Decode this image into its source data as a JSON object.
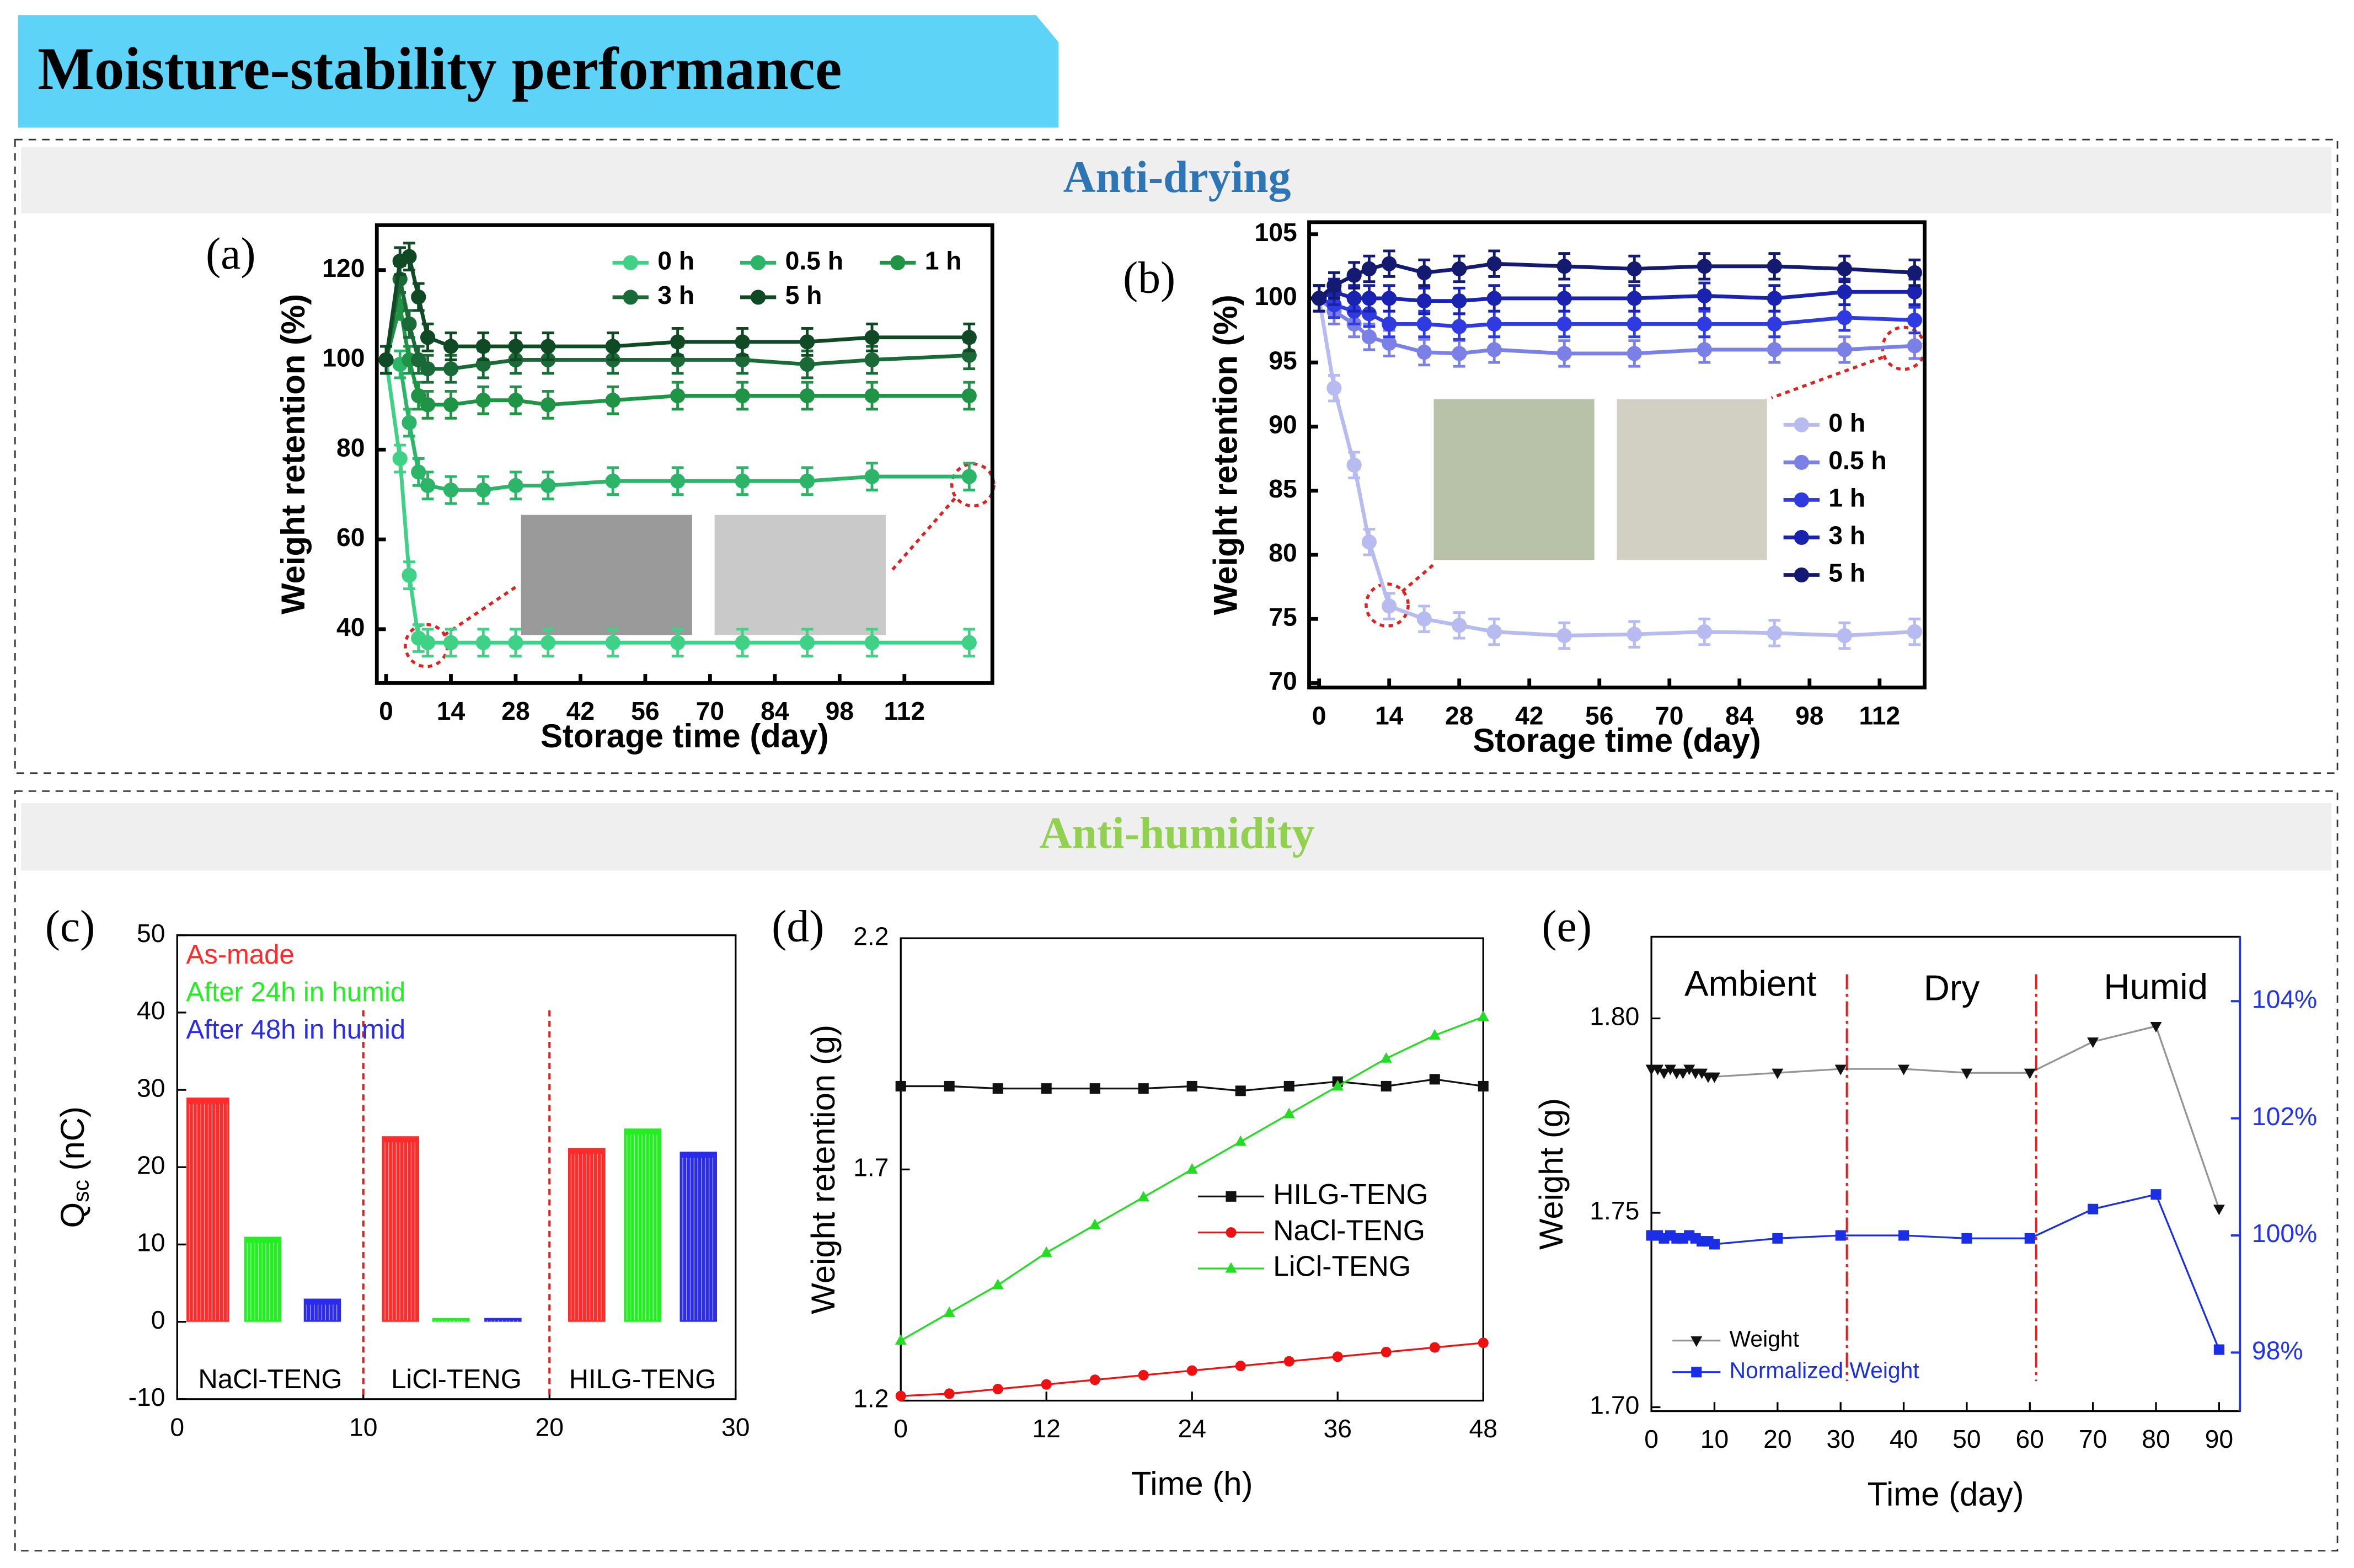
{
  "header": {
    "title": "Moisture-stability performance"
  },
  "sections": [
    "Anti-drying",
    "Anti-humidity"
  ],
  "chart_data": [
    {
      "type": "line",
      "panel": "(a)",
      "xlabel": "Storage time (day)",
      "ylabel": "Weight retention (%)",
      "xlim": [
        -2,
        131
      ],
      "ylim": [
        28,
        130
      ],
      "xticks": [
        0,
        14,
        28,
        42,
        56,
        70,
        84,
        98,
        112
      ],
      "yticks": [
        40,
        60,
        80,
        100,
        120
      ],
      "x": [
        0,
        3,
        5,
        7,
        9,
        14,
        21,
        28,
        35,
        49,
        63,
        77,
        91,
        105,
        126
      ],
      "series": [
        {
          "name": "0 h",
          "color": "#3fd186",
          "marker": "circle",
          "error": 3,
          "values": [
            100,
            78,
            52,
            38,
            37,
            37,
            37,
            37,
            37,
            37,
            37,
            37,
            37,
            37,
            37
          ]
        },
        {
          "name": "0.5 h",
          "color": "#2cb569",
          "marker": "circle",
          "error": 3,
          "values": [
            100,
            99,
            86,
            75,
            72,
            71,
            71,
            72,
            72,
            73,
            73,
            73,
            73,
            74,
            74
          ]
        },
        {
          "name": "1 h",
          "color": "#1f9445",
          "marker": "circle",
          "error": 3,
          "values": [
            100,
            112,
            100,
            92,
            90,
            90,
            91,
            91,
            90,
            91,
            92,
            92,
            92,
            92,
            92
          ]
        },
        {
          "name": "3 h",
          "color": "#1a6a37",
          "marker": "circle",
          "error": 3,
          "values": [
            100,
            118,
            108,
            100,
            98,
            98,
            99,
            100,
            100,
            100,
            100,
            100,
            99,
            100,
            101
          ]
        },
        {
          "name": "5 h",
          "color": "#0f4a25",
          "marker": "circle",
          "error": 3,
          "values": [
            100,
            122,
            123,
            114,
            105,
            103,
            103,
            103,
            103,
            103,
            104,
            104,
            104,
            105,
            105
          ]
        }
      ]
    },
    {
      "type": "line",
      "panel": "(b)",
      "xlabel": "Storage time (day)",
      "ylabel": "Weight retention (%)",
      "xlim": [
        -2,
        121
      ],
      "ylim": [
        69.65,
        105.94
      ],
      "xticks": [
        0,
        14,
        28,
        42,
        56,
        70,
        84,
        98,
        112
      ],
      "yticks": [
        70,
        75,
        80,
        85,
        90,
        95,
        100,
        105
      ],
      "x": [
        0,
        3,
        7,
        10,
        14,
        21,
        28,
        35,
        49,
        63,
        77,
        91,
        105,
        119
      ],
      "series": [
        {
          "name": "0 h",
          "color": "#b7bbf0",
          "marker": "circle",
          "error": 1,
          "values": [
            100,
            93,
            87,
            81,
            76,
            75,
            74.5,
            74,
            73.7,
            73.8,
            74,
            73.9,
            73.7,
            74
          ]
        },
        {
          "name": "0.5 h",
          "color": "#7a80e6",
          "marker": "circle",
          "error": 1,
          "values": [
            100,
            99,
            98,
            97,
            96.5,
            95.8,
            95.7,
            96,
            95.7,
            95.7,
            96,
            96,
            96,
            96.3
          ]
        },
        {
          "name": "1 h",
          "color": "#2f3be0",
          "marker": "circle",
          "error": 1,
          "values": [
            100,
            99.5,
            99,
            98.8,
            98,
            98,
            97.8,
            98,
            98,
            98,
            98,
            98,
            98.5,
            98.3
          ]
        },
        {
          "name": "3 h",
          "color": "#1a22b0",
          "marker": "circle",
          "error": 1,
          "values": [
            100,
            100.5,
            100,
            100,
            100,
            99.8,
            99.8,
            100,
            100,
            100,
            100.2,
            100,
            100.5,
            100.5
          ]
        },
        {
          "name": "5 h",
          "color": "#141a70",
          "marker": "circle",
          "error": 1,
          "values": [
            100,
            101,
            101.8,
            102.3,
            102.7,
            102,
            102.3,
            102.7,
            102.5,
            102.3,
            102.5,
            102.5,
            102.3,
            102
          ]
        }
      ]
    },
    {
      "type": "bar",
      "panel": "(c)",
      "ylabel": [
        "Q",
        "sc",
        " (nC)"
      ],
      "xlim": [
        0,
        30
      ],
      "ylim": [
        -10,
        50
      ],
      "xticks": [
        0,
        10,
        20,
        30
      ],
      "yticks": [
        -10,
        0,
        10,
        20,
        30,
        40,
        50
      ],
      "categories": [
        "NaCl-TENG",
        "LiCl-TENG",
        "HILG-TENG"
      ],
      "dividers": [
        10,
        20
      ],
      "series": [
        {
          "name": "As-made",
          "color": "#ff2a2a",
          "x": [
            [
              0.5,
              2.8
            ],
            [
              11,
              13
            ],
            [
              21,
              23
            ]
          ],
          "values": [
            29,
            24,
            22.5
          ]
        },
        {
          "name": "After 24h in humid",
          "color": "#22ee22",
          "x": [
            [
              3.6,
              5.6
            ],
            [
              13.7,
              15.7
            ],
            [
              24,
              26
            ]
          ],
          "values": [
            11,
            0.5,
            25
          ]
        },
        {
          "name": "After 48h in humid",
          "color": "#2b2bee",
          "x": [
            [
              6.8,
              8.8
            ],
            [
              16.5,
              18.5
            ],
            [
              27,
              29
            ]
          ],
          "values": [
            3,
            0.5,
            22
          ]
        }
      ]
    },
    {
      "type": "line",
      "panel": "(d)",
      "xlabel": "Time (h)",
      "ylabel": "Weight retention (g)",
      "xlim": [
        0,
        48
      ],
      "ylim": [
        1.2,
        2.2
      ],
      "xticks": [
        0,
        12,
        24,
        36,
        48
      ],
      "yticks": [
        1.2,
        1.7,
        2.2
      ],
      "x": [
        0,
        4,
        8,
        12,
        16,
        20,
        24,
        28,
        32,
        36,
        40,
        44,
        48
      ],
      "series": [
        {
          "name": "HILG-TENG",
          "color": "#111111",
          "marker": "square",
          "values": [
            1.88,
            1.88,
            1.875,
            1.875,
            1.875,
            1.875,
            1.88,
            1.87,
            1.88,
            1.89,
            1.88,
            1.895,
            1.88
          ]
        },
        {
          "name": "NaCl-TENG",
          "color": "#ee1111",
          "marker": "circle",
          "values": [
            1.21,
            1.215,
            1.225,
            1.235,
            1.245,
            1.255,
            1.265,
            1.275,
            1.285,
            1.295,
            1.305,
            1.315,
            1.325
          ]
        },
        {
          "name": "LiCl-TENG",
          "color": "#22dd22",
          "marker": "triangle",
          "values": [
            1.33,
            1.39,
            1.45,
            1.52,
            1.58,
            1.64,
            1.7,
            1.76,
            1.82,
            1.88,
            1.94,
            1.99,
            2.03
          ]
        }
      ]
    },
    {
      "type": "line",
      "panel": "(e)",
      "xlabel": "Time (day)",
      "ylabel": "Weight (g)",
      "xlim": [
        0,
        93.3
      ],
      "ylim": [
        1.699,
        1.821
      ],
      "y2lim": [
        97,
        105.1
      ],
      "xticks": [
        0,
        10,
        20,
        30,
        40,
        50,
        60,
        70,
        80,
        90
      ],
      "yticks": [
        {
          "value": 1.7,
          "label": "1.70"
        },
        1.75,
        {
          "value": 1.8,
          "label": "1.80"
        }
      ],
      "y2ticks": [
        {
          "value": 98,
          "label": "98%"
        },
        {
          "value": 100,
          "label": "100%"
        },
        {
          "value": 102,
          "label": "102%"
        },
        {
          "value": 104,
          "label": "104%"
        }
      ],
      "annotations": [
        "Ambient",
        "Dry",
        "Humid"
      ],
      "dividers": [
        31,
        61
      ],
      "x": [
        0,
        1,
        2,
        3,
        4,
        5,
        6,
        7,
        8,
        9,
        10,
        20,
        30,
        40,
        50,
        60,
        70,
        80,
        90
      ],
      "series": [
        {
          "name": "Weight",
          "color": "#111111",
          "marker": "triangle-down",
          "values": [
            1.787,
            1.787,
            1.786,
            1.787,
            1.786,
            1.786,
            1.787,
            1.786,
            1.786,
            1.785,
            1.785,
            1.786,
            1.787,
            1.787,
            1.786,
            1.786,
            1.794,
            1.798,
            1.751
          ]
        },
        {
          "name": "Normalized Weight",
          "color": "#1a2ee6",
          "marker": "square",
          "axis": "y2",
          "values": [
            100,
            100,
            99.95,
            100,
            99.95,
            99.95,
            100,
            99.95,
            99.9,
            99.9,
            99.85,
            99.95,
            100,
            100,
            99.95,
            99.95,
            100.45,
            100.7,
            98.05
          ]
        }
      ]
    }
  ]
}
